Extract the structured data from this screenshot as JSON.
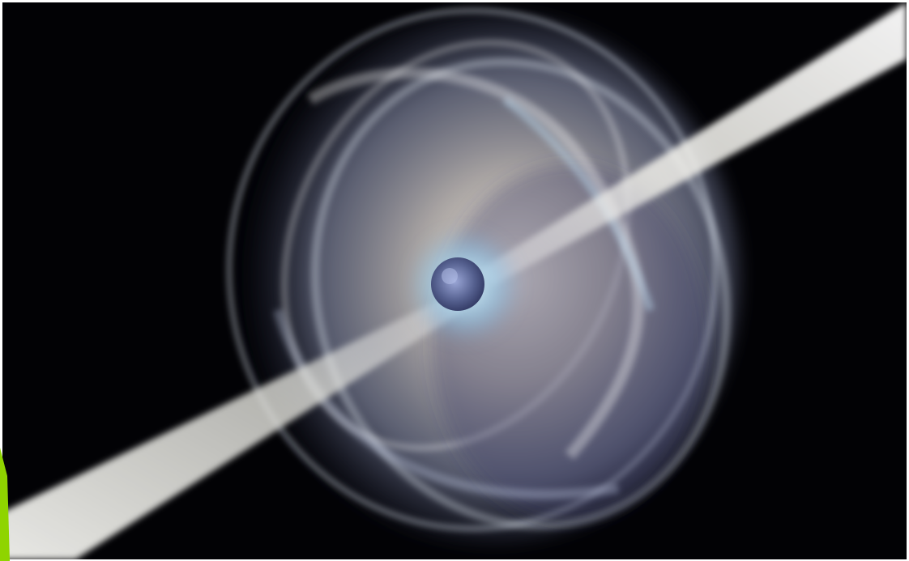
{
  "image": {
    "subject": "magnetar-icon",
    "colors": {
      "space": "#020205",
      "nebula": "#cdd8ea",
      "core": "#5a6aa0",
      "jet": "#f2f2ee",
      "accent": "#8fd400"
    }
  }
}
